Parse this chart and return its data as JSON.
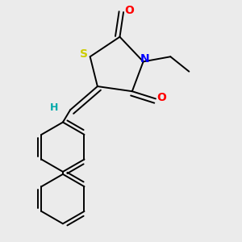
{
  "background_color": "#ebebeb",
  "atom_colors": {
    "C": "#000000",
    "N": "#0000ff",
    "O": "#ff0000",
    "S": "#cccc00",
    "H": "#00aaaa"
  },
  "bond_color": "#000000",
  "bond_width": 1.4,
  "font_size_atom": 10,
  "font_size_h": 9,
  "figsize": [
    3.0,
    3.0
  ],
  "dpi": 100
}
